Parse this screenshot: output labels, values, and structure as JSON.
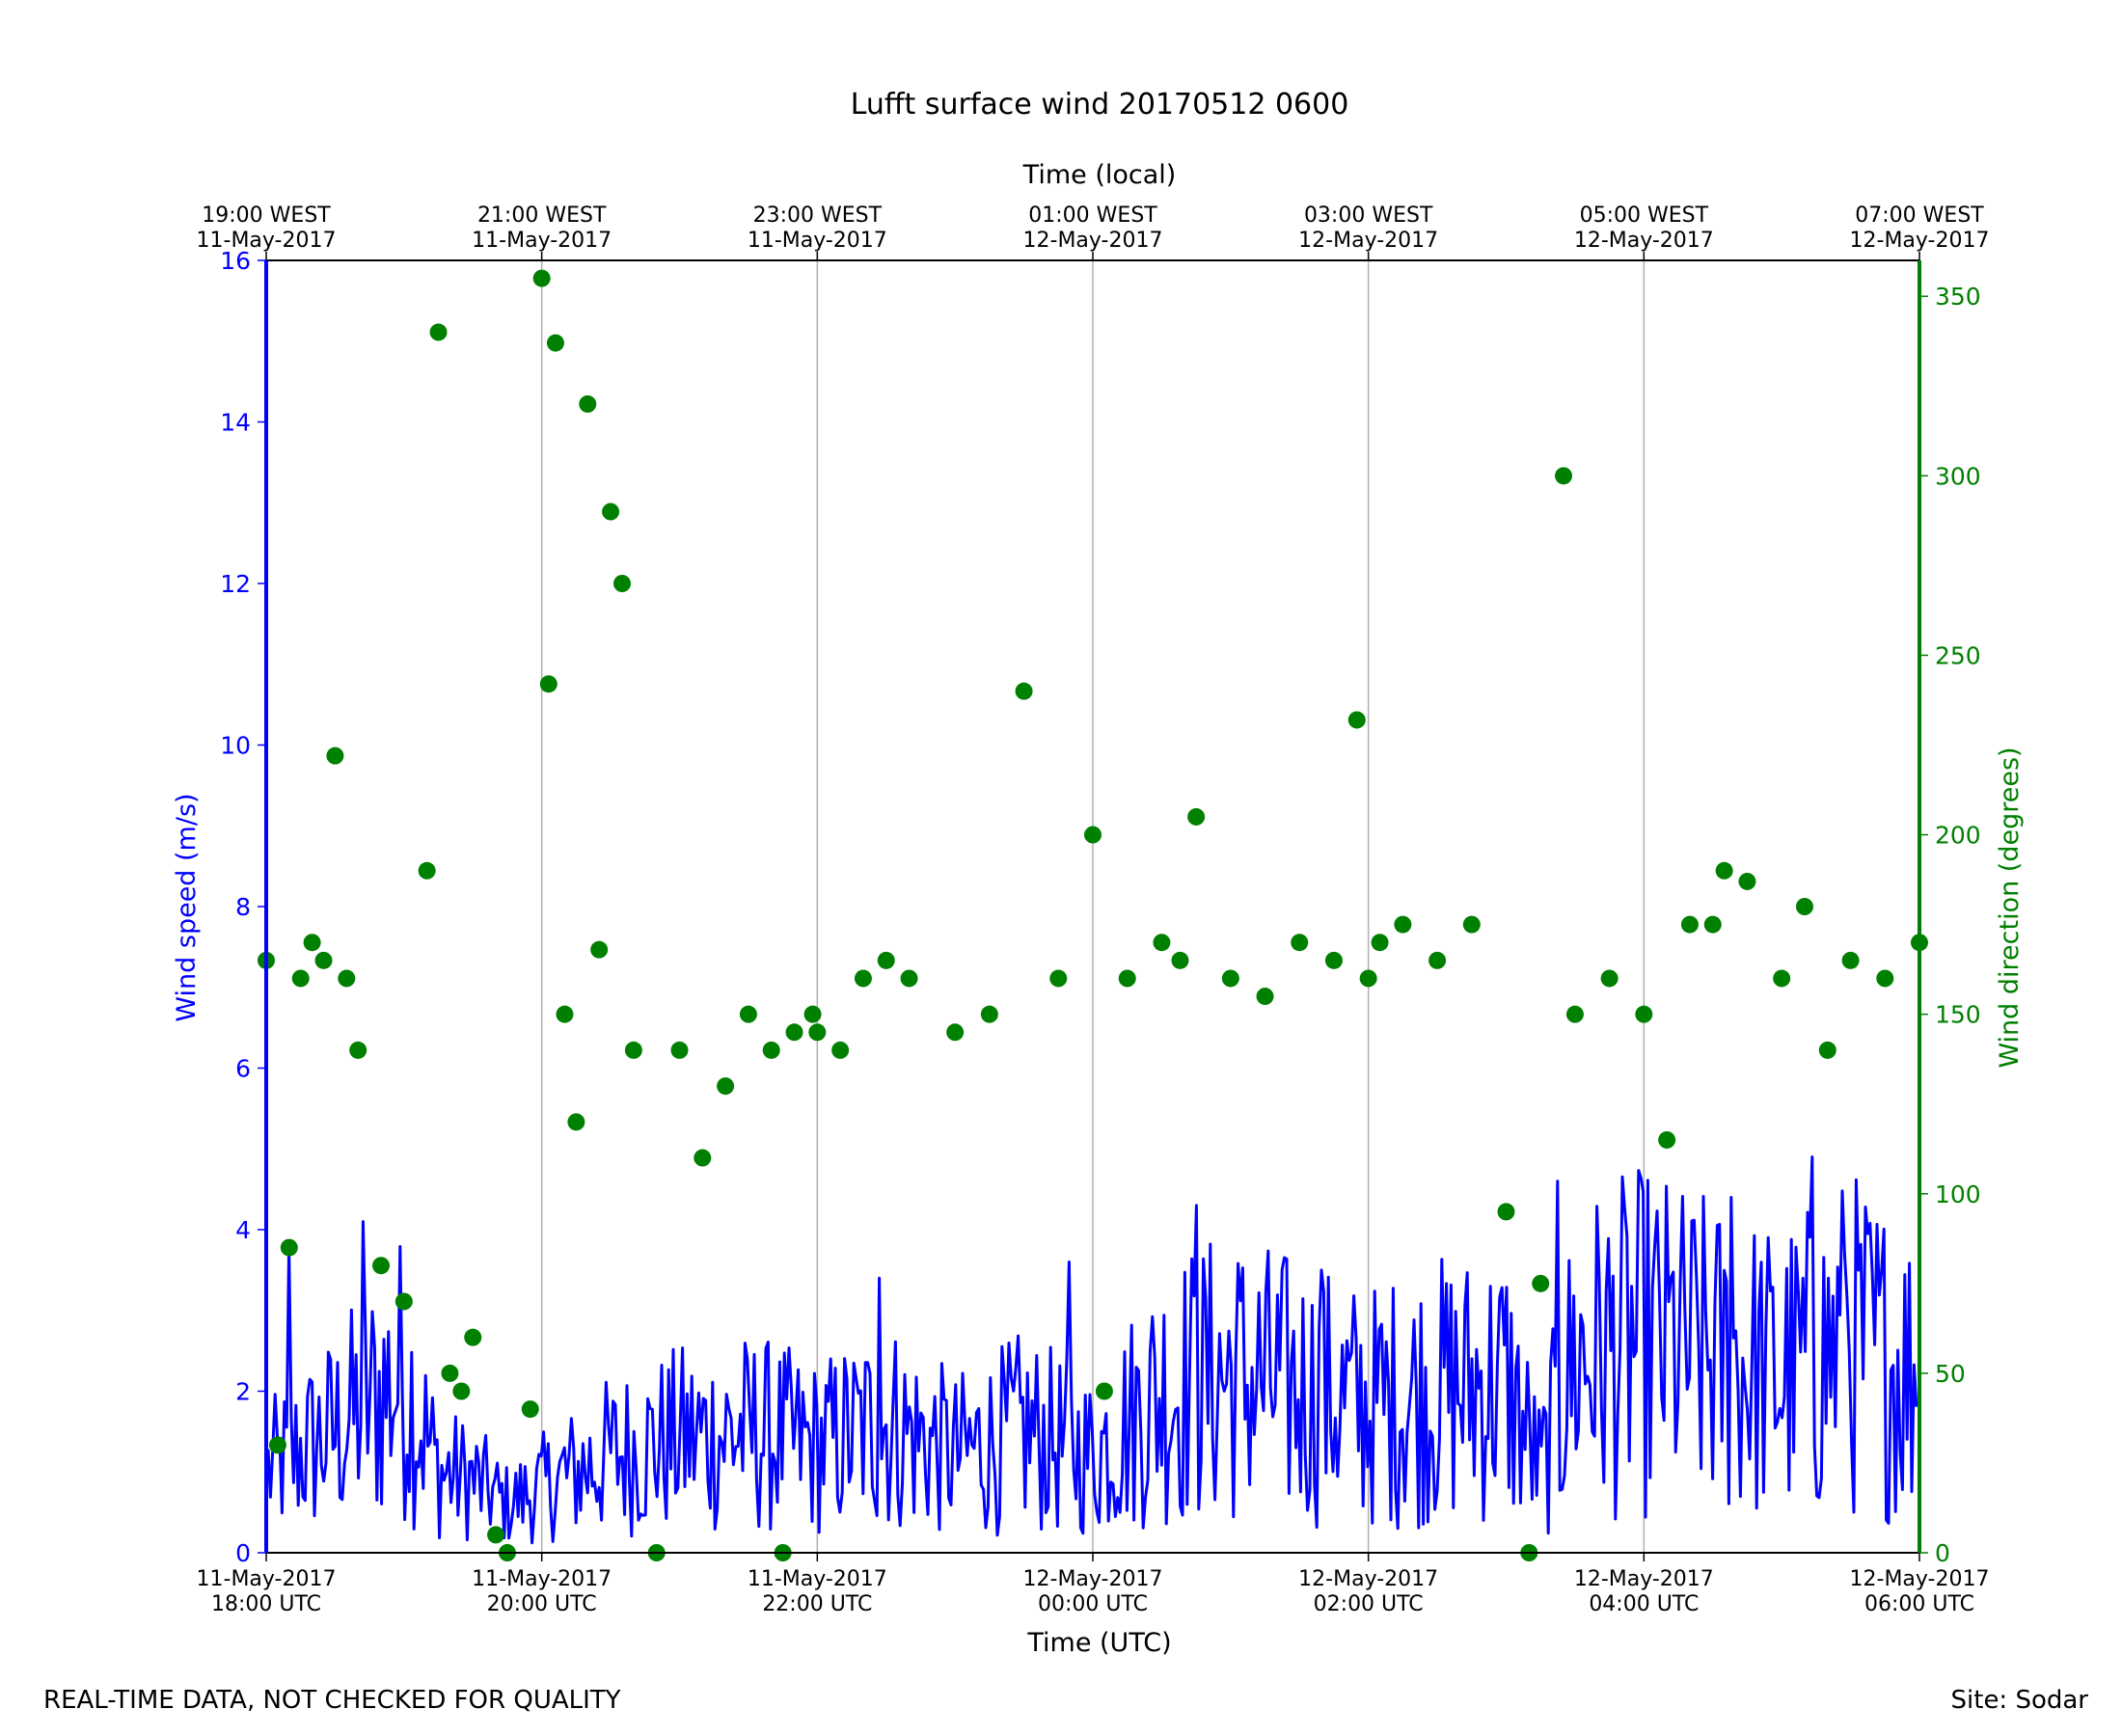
{
  "chart_data": {
    "type": "line",
    "title": "Lufft surface wind 20170512 0600",
    "xlabel": "Time (UTC)",
    "top_xlabel": "Time (local)",
    "ylabel": "Wind speed (m/s)",
    "y2label": "Wind direction (degrees)",
    "ylim": [
      0,
      16
    ],
    "y2lim": [
      0,
      360
    ],
    "yticks": [
      "0",
      "2",
      "4",
      "6",
      "8",
      "10",
      "12",
      "14",
      "16"
    ],
    "y2ticks": [
      "0",
      "50",
      "100",
      "150",
      "200",
      "250",
      "300",
      "350"
    ],
    "x_range": [
      "2017-05-11 18:00",
      "2017-05-12 06:00"
    ],
    "xticks": [
      {
        "line1": "11-May-2017",
        "line2": "18:00 UTC"
      },
      {
        "line1": "11-May-2017",
        "line2": "20:00 UTC"
      },
      {
        "line1": "11-May-2017",
        "line2": "22:00 UTC"
      },
      {
        "line1": "12-May-2017",
        "line2": "00:00 UTC"
      },
      {
        "line1": "12-May-2017",
        "line2": "02:00 UTC"
      },
      {
        "line1": "12-May-2017",
        "line2": "04:00 UTC"
      },
      {
        "line1": "12-May-2017",
        "line2": "06:00 UTC"
      }
    ],
    "top_xticks": [
      {
        "line1": "19:00 WEST",
        "line2": "11-May-2017"
      },
      {
        "line1": "21:00 WEST",
        "line2": "11-May-2017"
      },
      {
        "line1": "23:00 WEST",
        "line2": "11-May-2017"
      },
      {
        "line1": "01:00 WEST",
        "line2": "12-May-2017"
      },
      {
        "line1": "03:00 WEST",
        "line2": "12-May-2017"
      },
      {
        "line1": "05:00 WEST",
        "line2": "12-May-2017"
      },
      {
        "line1": "07:00 WEST",
        "line2": "12-May-2017"
      }
    ],
    "vertical_grid": true,
    "colors": {
      "speed": "#0000ff",
      "direction": "#008000",
      "grid": "#b0b0b0",
      "axes": "#000000"
    },
    "series": [
      {
        "name": "Wind speed",
        "axis": "left",
        "kind": "line",
        "x": [
          "2017-05-11 18:00",
          "2017-05-11 18:30",
          "2017-05-11 19:00",
          "2017-05-11 19:15",
          "2017-05-11 19:30",
          "2017-05-11 19:45",
          "2017-05-11 20:00",
          "2017-05-11 20:30",
          "2017-05-11 21:00",
          "2017-05-11 21:30",
          "2017-05-11 22:00",
          "2017-05-11 22:30",
          "2017-05-11 23:00",
          "2017-05-11 23:30",
          "2017-05-12 00:00",
          "2017-05-12 00:30",
          "2017-05-12 01:00",
          "2017-05-12 01:30",
          "2017-05-12 02:00",
          "2017-05-12 02:30",
          "2017-05-12 03:00",
          "2017-05-12 03:15",
          "2017-05-12 03:30",
          "2017-05-12 04:00",
          "2017-05-12 04:30",
          "2017-05-12 05:00",
          "2017-05-12 05:30",
          "2017-05-12 06:00"
        ],
        "y": [
          1.0,
          1.5,
          2.2,
          1.0,
          0.9,
          0.6,
          0.8,
          1.2,
          1.4,
          1.5,
          1.3,
          1.6,
          1.2,
          1.5,
          1.2,
          2.0,
          2.2,
          2.0,
          1.8,
          2.0,
          2.1,
          1.0,
          2.4,
          2.6,
          2.4,
          2.2,
          2.6,
          2.2
        ],
        "extremes": [
          {
            "x": "2017-05-11 18:10",
            "y": 3.8
          },
          {
            "x": "2017-05-11 18:42",
            "y": 4.1
          },
          {
            "x": "2017-05-11 20:10",
            "y": 1.3
          },
          {
            "x": "2017-05-11 21:30",
            "y": 2.4
          },
          {
            "x": "2017-05-11 22:27",
            "y": 3.4
          },
          {
            "x": "2017-05-11 23:50",
            "y": 3.6
          },
          {
            "x": "2017-05-12 00:45",
            "y": 4.3
          },
          {
            "x": "2017-05-12 01:40",
            "y": 3.5
          },
          {
            "x": "2017-05-12 03:22",
            "y": 4.6
          },
          {
            "x": "2017-05-12 04:38",
            "y": 4.4
          },
          {
            "x": "2017-05-12 05:13",
            "y": 4.9
          },
          {
            "x": "2017-05-12 05:27",
            "y": 3.7
          }
        ]
      },
      {
        "name": "Wind direction",
        "axis": "right",
        "kind": "scatter",
        "x": [
          "2017-05-11 18:00",
          "2017-05-11 18:05",
          "2017-05-11 18:10",
          "2017-05-11 18:15",
          "2017-05-11 18:20",
          "2017-05-11 18:25",
          "2017-05-11 18:30",
          "2017-05-11 18:35",
          "2017-05-11 18:40",
          "2017-05-11 18:50",
          "2017-05-11 19:00",
          "2017-05-11 19:10",
          "2017-05-11 19:15",
          "2017-05-11 19:20",
          "2017-05-11 19:25",
          "2017-05-11 19:30",
          "2017-05-11 19:40",
          "2017-05-11 19:45",
          "2017-05-11 19:55",
          "2017-05-11 20:00",
          "2017-05-11 20:03",
          "2017-05-11 20:06",
          "2017-05-11 20:10",
          "2017-05-11 20:15",
          "2017-05-11 20:20",
          "2017-05-11 20:25",
          "2017-05-11 20:30",
          "2017-05-11 20:35",
          "2017-05-11 20:40",
          "2017-05-11 20:50",
          "2017-05-11 21:00",
          "2017-05-11 21:10",
          "2017-05-11 21:20",
          "2017-05-11 21:30",
          "2017-05-11 21:40",
          "2017-05-11 21:45",
          "2017-05-11 21:50",
          "2017-05-11 21:58",
          "2017-05-11 22:00",
          "2017-05-11 22:10",
          "2017-05-11 22:20",
          "2017-05-11 22:30",
          "2017-05-11 22:40",
          "2017-05-11 23:00",
          "2017-05-11 23:15",
          "2017-05-11 23:30",
          "2017-05-11 23:45",
          "2017-05-12 00:00",
          "2017-05-12 00:05",
          "2017-05-12 00:15",
          "2017-05-12 00:30",
          "2017-05-12 00:38",
          "2017-05-12 00:45",
          "2017-05-12 01:00",
          "2017-05-12 01:15",
          "2017-05-12 01:30",
          "2017-05-12 01:45",
          "2017-05-12 01:55",
          "2017-05-12 02:00",
          "2017-05-12 02:05",
          "2017-05-12 02:15",
          "2017-05-12 02:30",
          "2017-05-12 02:45",
          "2017-05-12 03:00",
          "2017-05-12 03:10",
          "2017-05-12 03:15",
          "2017-05-12 03:25",
          "2017-05-12 03:30",
          "2017-05-12 03:45",
          "2017-05-12 04:00",
          "2017-05-12 04:10",
          "2017-05-12 04:20",
          "2017-05-12 04:30",
          "2017-05-12 04:35",
          "2017-05-12 04:45",
          "2017-05-12 05:00",
          "2017-05-12 05:10",
          "2017-05-12 05:20",
          "2017-05-12 05:30",
          "2017-05-12 05:45",
          "2017-05-12 06:00"
        ],
        "y": [
          165,
          30,
          85,
          160,
          170,
          165,
          222,
          160,
          140,
          80,
          70,
          190,
          340,
          50,
          45,
          60,
          5,
          0,
          40,
          355,
          242,
          337,
          150,
          120,
          320,
          168,
          290,
          270,
          140,
          0,
          140,
          110,
          130,
          150,
          140,
          0,
          145,
          150,
          145,
          140,
          160,
          165,
          160,
          145,
          150,
          240,
          160,
          200,
          45,
          160,
          170,
          165,
          205,
          160,
          155,
          170,
          165,
          232,
          160,
          170,
          175,
          165,
          175,
          95,
          0,
          75,
          300,
          150,
          160,
          150,
          115,
          175,
          175,
          190,
          187,
          160,
          180,
          140,
          165,
          160,
          170
        ]
      }
    ],
    "footer_left": "REAL-TIME DATA, NOT CHECKED FOR QUALITY",
    "footer_right": "Site: Sodar"
  }
}
